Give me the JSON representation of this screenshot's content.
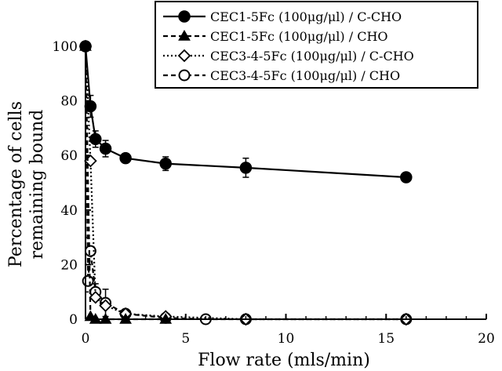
{
  "chart_data": {
    "type": "line",
    "title": "",
    "xlabel": "Flow rate (mls/min)",
    "ylabel_lines": [
      "Percentage of cells",
      "remaining bound"
    ],
    "xlim": [
      0,
      20
    ],
    "ylim": [
      0,
      100
    ],
    "x_ticks": [
      0,
      5,
      10,
      15,
      20
    ],
    "y_ticks": [
      0,
      20,
      40,
      60,
      80,
      100
    ],
    "grid": false,
    "legend_position": "top-right",
    "series": [
      {
        "name": "CEC1-5Fc (100μg/μl) / C-CHO",
        "marker": "filled-circle",
        "line_style": "solid",
        "color": "#000000",
        "x": [
          0,
          0.25,
          0.5,
          1,
          2,
          4,
          8,
          16
        ],
        "y": [
          100,
          78,
          66,
          62.5,
          59,
          57,
          55.5,
          52
        ],
        "err": [
          0,
          4,
          3,
          3,
          1.5,
          2.5,
          3.5,
          1
        ]
      },
      {
        "name": "CEC1-5Fc (100μg/μl) / CHO",
        "marker": "filled-triangle",
        "line_style": "dashed",
        "color": "#000000",
        "x": [
          0,
          0.25,
          0.5,
          1,
          2,
          4
        ],
        "y": [
          100,
          1,
          0,
          0,
          0,
          0
        ],
        "err": [
          0,
          0,
          0,
          0,
          0,
          0
        ]
      },
      {
        "name": "CEC3-4-5Fc (100μg/μl) / C-CHO",
        "marker": "open-diamond",
        "line_style": "dotted",
        "color": "#000000",
        "x": [
          0,
          0.25,
          0.5,
          1,
          2,
          4,
          8,
          16
        ],
        "y": [
          100,
          58,
          8,
          5,
          2,
          1,
          0,
          0
        ],
        "err": [
          0,
          0,
          0,
          0,
          0,
          0,
          0,
          0
        ]
      },
      {
        "name": "CEC3-4-5Fc (100μg/μl) / CHO",
        "marker": "open-circle",
        "line_style": "dashed",
        "color": "#000000",
        "x": [
          0,
          0.125,
          0.25,
          0.5,
          1,
          2,
          4,
          6,
          8,
          16
        ],
        "y": [
          100,
          14,
          25,
          10,
          6,
          2,
          0.5,
          0,
          0,
          0
        ],
        "err": [
          0,
          0,
          0,
          3,
          5,
          0,
          0,
          0,
          0,
          0
        ]
      }
    ]
  }
}
